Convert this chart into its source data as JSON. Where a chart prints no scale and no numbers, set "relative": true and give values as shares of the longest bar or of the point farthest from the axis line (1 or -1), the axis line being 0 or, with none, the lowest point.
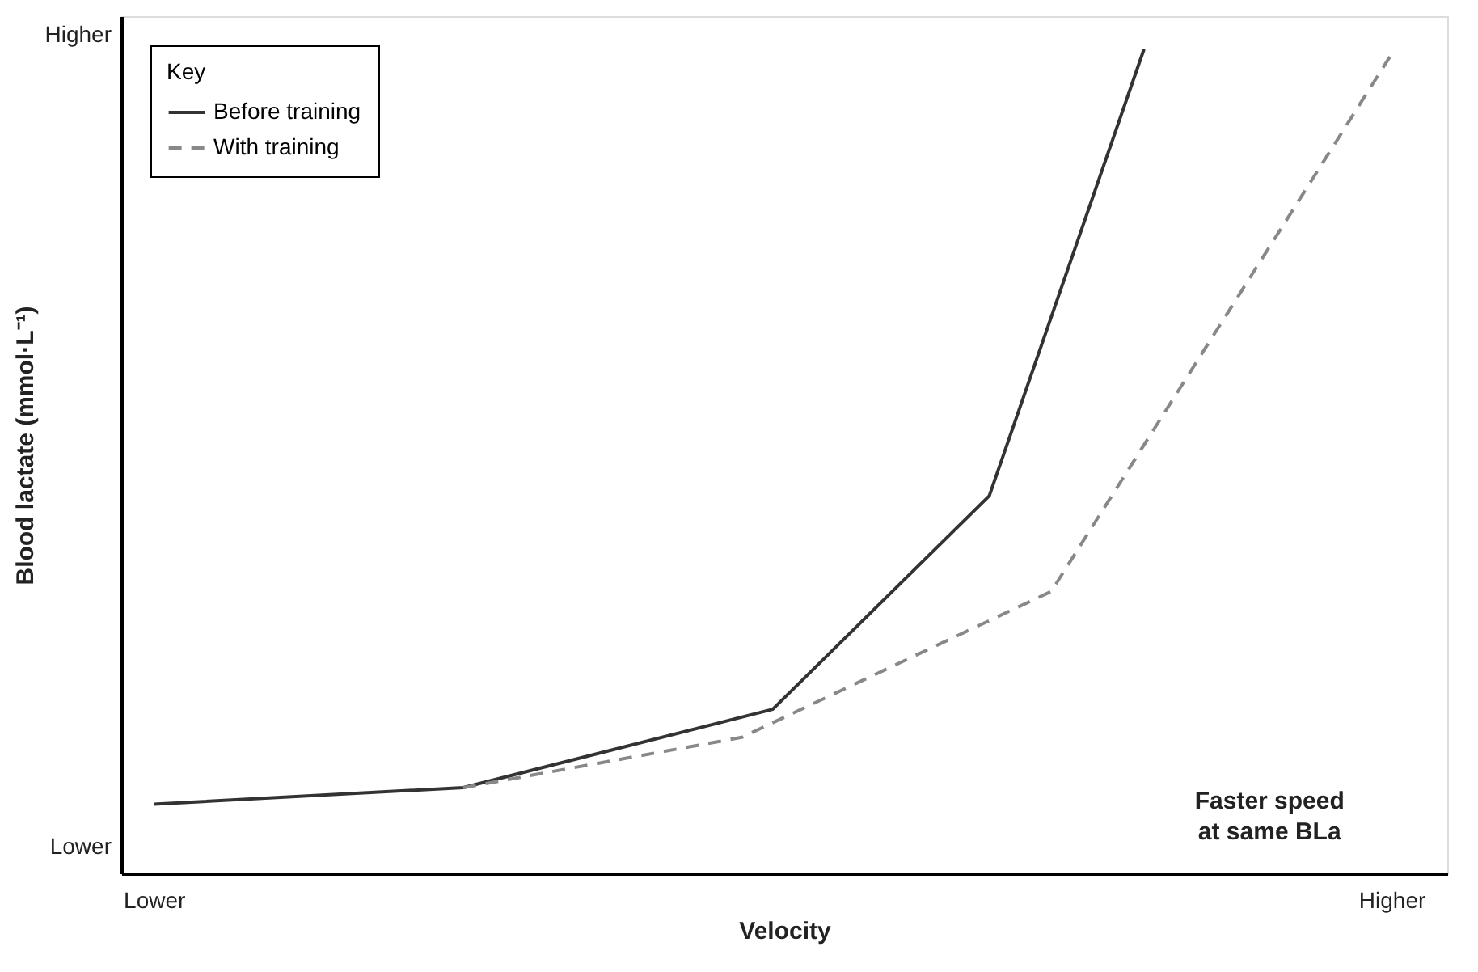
{
  "chart_data": {
    "type": "line",
    "relative": true,
    "xlabel": "Velocity",
    "ylabel": "Blood lactate (mmol·L⁻¹)",
    "legend_title": "Key",
    "categories": [
      "Lower",
      null,
      null,
      null,
      null,
      null,
      null,
      null,
      null,
      null,
      null,
      null,
      null,
      null,
      null,
      null,
      null,
      null,
      null,
      null,
      null,
      null,
      null,
      null,
      null,
      null,
      null,
      null,
      null,
      null,
      null,
      null,
      null,
      null,
      null,
      null,
      null,
      null,
      null,
      null,
      "Higher"
    ],
    "series": [
      {
        "name": "Before training",
        "color": "#333333",
        "line_style": "solid",
        "values": [
          0.084,
          null,
          null,
          null,
          null,
          null,
          null,
          null,
          null,
          null,
          0.104,
          null,
          null,
          null,
          null,
          null,
          null,
          null,
          null,
          null,
          0.199,
          null,
          null,
          null,
          null,
          null,
          null,
          0.458,
          null,
          null,
          null,
          null,
          1,
          null,
          null,
          null,
          null,
          null,
          null,
          null,
          null
        ]
      },
      {
        "name": "With training",
        "color": "#888888",
        "line_style": "dashed",
        "values": [
          null,
          null,
          null,
          null,
          null,
          null,
          null,
          null,
          null,
          null,
          0.104,
          null,
          null,
          null,
          null,
          null,
          null,
          null,
          null,
          0.165,
          null,
          null,
          null,
          null,
          null,
          null,
          null,
          null,
          null,
          0.342,
          null,
          null,
          null,
          null,
          null,
          null,
          null,
          null,
          null,
          null,
          0.994
        ]
      }
    ],
    "annotations": [
      "Higher",
      "Lower",
      "Faster speed\nat same BLa"
    ],
    "grid": false,
    "legend": "top left",
    "marker": "none"
  }
}
